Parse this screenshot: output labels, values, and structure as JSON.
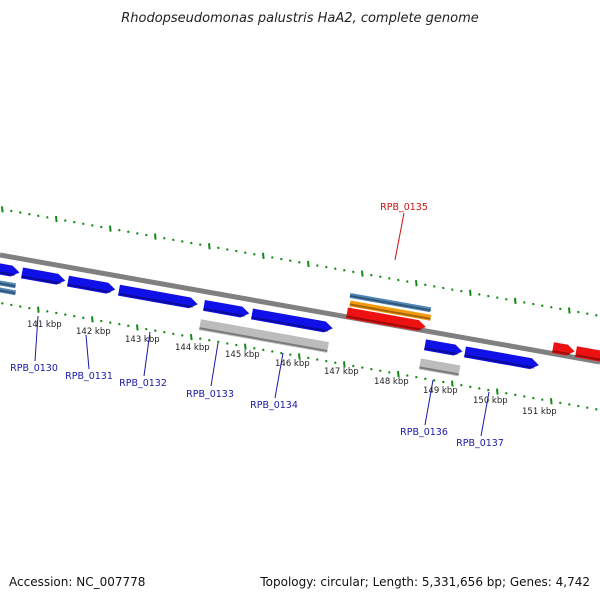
{
  "title": "Rhodopseudomonas palustris HaA2, complete genome",
  "footer": {
    "accession": "Accession: NC_007778",
    "topology": "Topology: circular; Length: 5,331,656 bp; Genes: 4,742"
  },
  "colors": {
    "forward_cds": "#1010e8",
    "reverse_cds": "#ee1111",
    "rna_gene": "#bcbcbc",
    "orange_feature": "#f59a10",
    "steel_feature": "#4f86b8",
    "backbone": "#808080",
    "tick": "#128a12",
    "label_blue": "#1a1aa8",
    "label_red": "#cc1111"
  },
  "kbp_ticks": [
    "141 kbp",
    "142 kbp",
    "143 kbp",
    "144 kbp",
    "145 kbp",
    "146 kbp",
    "147 kbp",
    "148 kbp",
    "149 kbp",
    "150 kbp",
    "151 kbp"
  ],
  "gene_labels": [
    {
      "name": "RPB_0130",
      "color": "label_blue"
    },
    {
      "name": "RPB_0131",
      "color": "label_blue"
    },
    {
      "name": "RPB_0132",
      "color": "label_blue"
    },
    {
      "name": "RPB_0133",
      "color": "label_blue"
    },
    {
      "name": "RPB_0134",
      "color": "label_blue"
    },
    {
      "name": "RPB_0135",
      "color": "label_red"
    },
    {
      "name": "RPB_0136",
      "color": "label_blue"
    },
    {
      "name": "RPB_0137",
      "color": "label_blue"
    }
  ]
}
